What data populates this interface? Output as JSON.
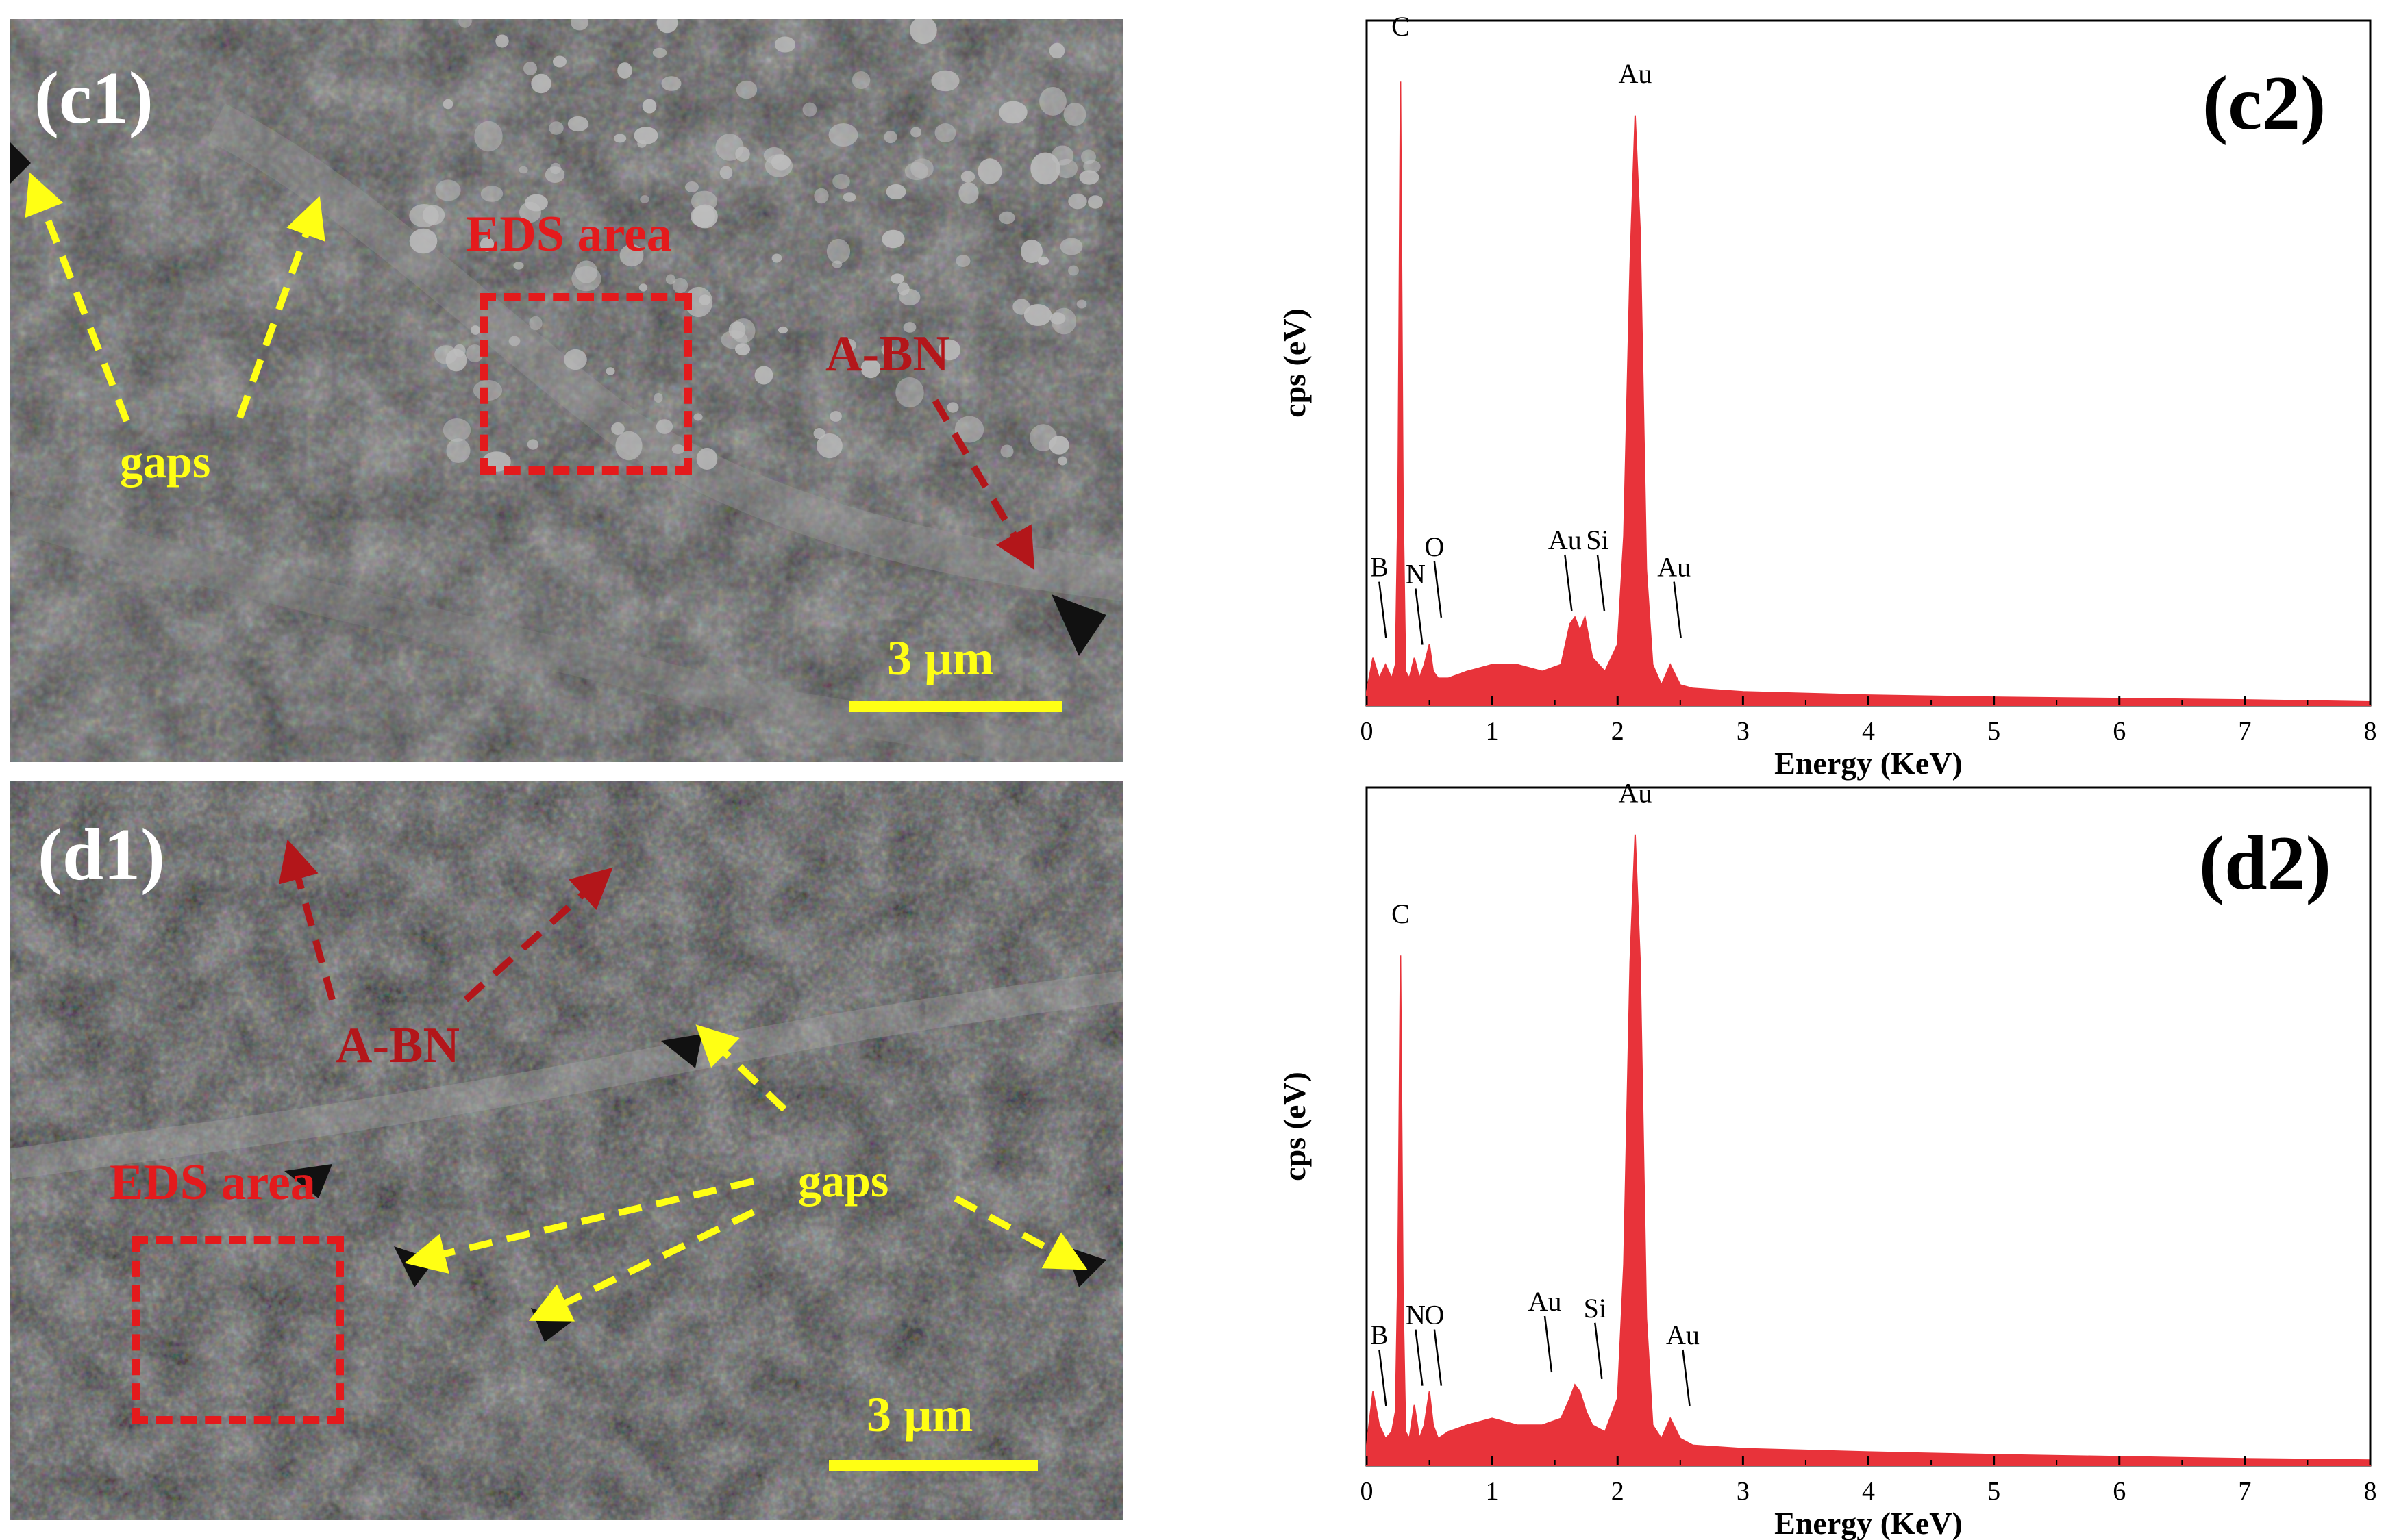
{
  "panels": {
    "c1": {
      "label": "(c1)",
      "eds_area": "EDS area",
      "abn": "A-BN",
      "gaps": "gaps",
      "scale": "3 µm"
    },
    "d1": {
      "label": "(d1)",
      "eds_area": "EDS area",
      "abn": "A-BN",
      "gaps": "gaps",
      "scale": "3 µm"
    },
    "c2": {
      "label": "(c2)"
    },
    "d2": {
      "label": "(d2)"
    }
  },
  "chart_data": [
    {
      "type": "area",
      "panel": "(c2)",
      "xlabel": "Energy (KeV)",
      "ylabel": "cps (eV)",
      "xlim": [
        0,
        8
      ],
      "xticks": [
        "0",
        "1",
        "2",
        "3",
        "4",
        "5",
        "6",
        "7",
        "8"
      ],
      "ylim": [
        0,
        100
      ],
      "color": "#e8333a",
      "peak_labels": [
        {
          "text": "C",
          "x": 0.27,
          "y": 98
        },
        {
          "text": "Au",
          "x": 2.14,
          "y": 91
        },
        {
          "text": "B",
          "x": 0.1,
          "y": 16
        },
        {
          "text": "N",
          "x": 0.39,
          "y": 15
        },
        {
          "text": "O",
          "x": 0.54,
          "y": 19
        },
        {
          "text": "Au",
          "x": 1.58,
          "y": 20
        },
        {
          "text": "Si",
          "x": 1.84,
          "y": 20
        },
        {
          "text": "Au",
          "x": 2.45,
          "y": 16
        }
      ],
      "x": [
        0,
        0.05,
        0.1,
        0.15,
        0.2,
        0.23,
        0.25,
        0.27,
        0.29,
        0.31,
        0.34,
        0.38,
        0.42,
        0.46,
        0.5,
        0.53,
        0.57,
        0.65,
        0.8,
        1.0,
        1.2,
        1.4,
        1.55,
        1.62,
        1.66,
        1.7,
        1.74,
        1.8,
        1.9,
        2.0,
        2.05,
        2.1,
        2.14,
        2.18,
        2.23,
        2.28,
        2.35,
        2.42,
        2.5,
        2.6,
        3.0,
        4.0,
        5.0,
        6.0,
        7.0,
        8.0
      ],
      "values": [
        2,
        7,
        4,
        6,
        4,
        6,
        30,
        92,
        30,
        5,
        4,
        7,
        4,
        6,
        9,
        5,
        4,
        4,
        5,
        6,
        6,
        5,
        6,
        12,
        13,
        11,
        13,
        7,
        5,
        9,
        25,
        65,
        87,
        70,
        20,
        6,
        3,
        6,
        3,
        2.5,
        2,
        1.5,
        1.2,
        1,
        0.8,
        0.5
      ]
    },
    {
      "type": "area",
      "panel": "(d2)",
      "xlabel": "Energy (KeV)",
      "ylabel": "cps (eV)",
      "xlim": [
        0,
        8
      ],
      "xticks": [
        "0",
        "1",
        "2",
        "3",
        "4",
        "5",
        "6",
        "7",
        "8"
      ],
      "ylim": [
        0,
        100
      ],
      "color": "#e8333a",
      "peak_labels": [
        {
          "text": "C",
          "x": 0.27,
          "y": 80
        },
        {
          "text": "Au",
          "x": 2.14,
          "y": 98
        },
        {
          "text": "B",
          "x": 0.1,
          "y": 15
        },
        {
          "text": "N",
          "x": 0.39,
          "y": 18
        },
        {
          "text": "O",
          "x": 0.54,
          "y": 18
        },
        {
          "text": "Au",
          "x": 1.42,
          "y": 20
        },
        {
          "text": "Si",
          "x": 1.82,
          "y": 19
        },
        {
          "text": "Au",
          "x": 2.52,
          "y": 15
        }
      ],
      "x": [
        0,
        0.05,
        0.1,
        0.15,
        0.2,
        0.23,
        0.25,
        0.27,
        0.29,
        0.31,
        0.34,
        0.38,
        0.42,
        0.46,
        0.5,
        0.53,
        0.57,
        0.65,
        0.8,
        1.0,
        1.2,
        1.4,
        1.55,
        1.62,
        1.66,
        1.7,
        1.75,
        1.8,
        1.9,
        2.0,
        2.05,
        2.1,
        2.14,
        2.18,
        2.23,
        2.28,
        2.35,
        2.42,
        2.5,
        2.6,
        3.0,
        4.0,
        5.0,
        6.0,
        7.0,
        8.0
      ],
      "values": [
        3,
        11,
        6,
        4,
        5,
        8,
        30,
        76,
        25,
        5,
        4,
        9,
        4,
        6,
        11,
        6,
        4,
        5,
        6,
        7,
        6,
        6,
        7,
        10,
        12,
        11,
        8,
        6,
        5,
        10,
        30,
        75,
        94,
        75,
        22,
        6,
        4,
        7,
        4,
        3,
        2.5,
        2,
        1.6,
        1.3,
        1,
        0.8
      ]
    }
  ]
}
